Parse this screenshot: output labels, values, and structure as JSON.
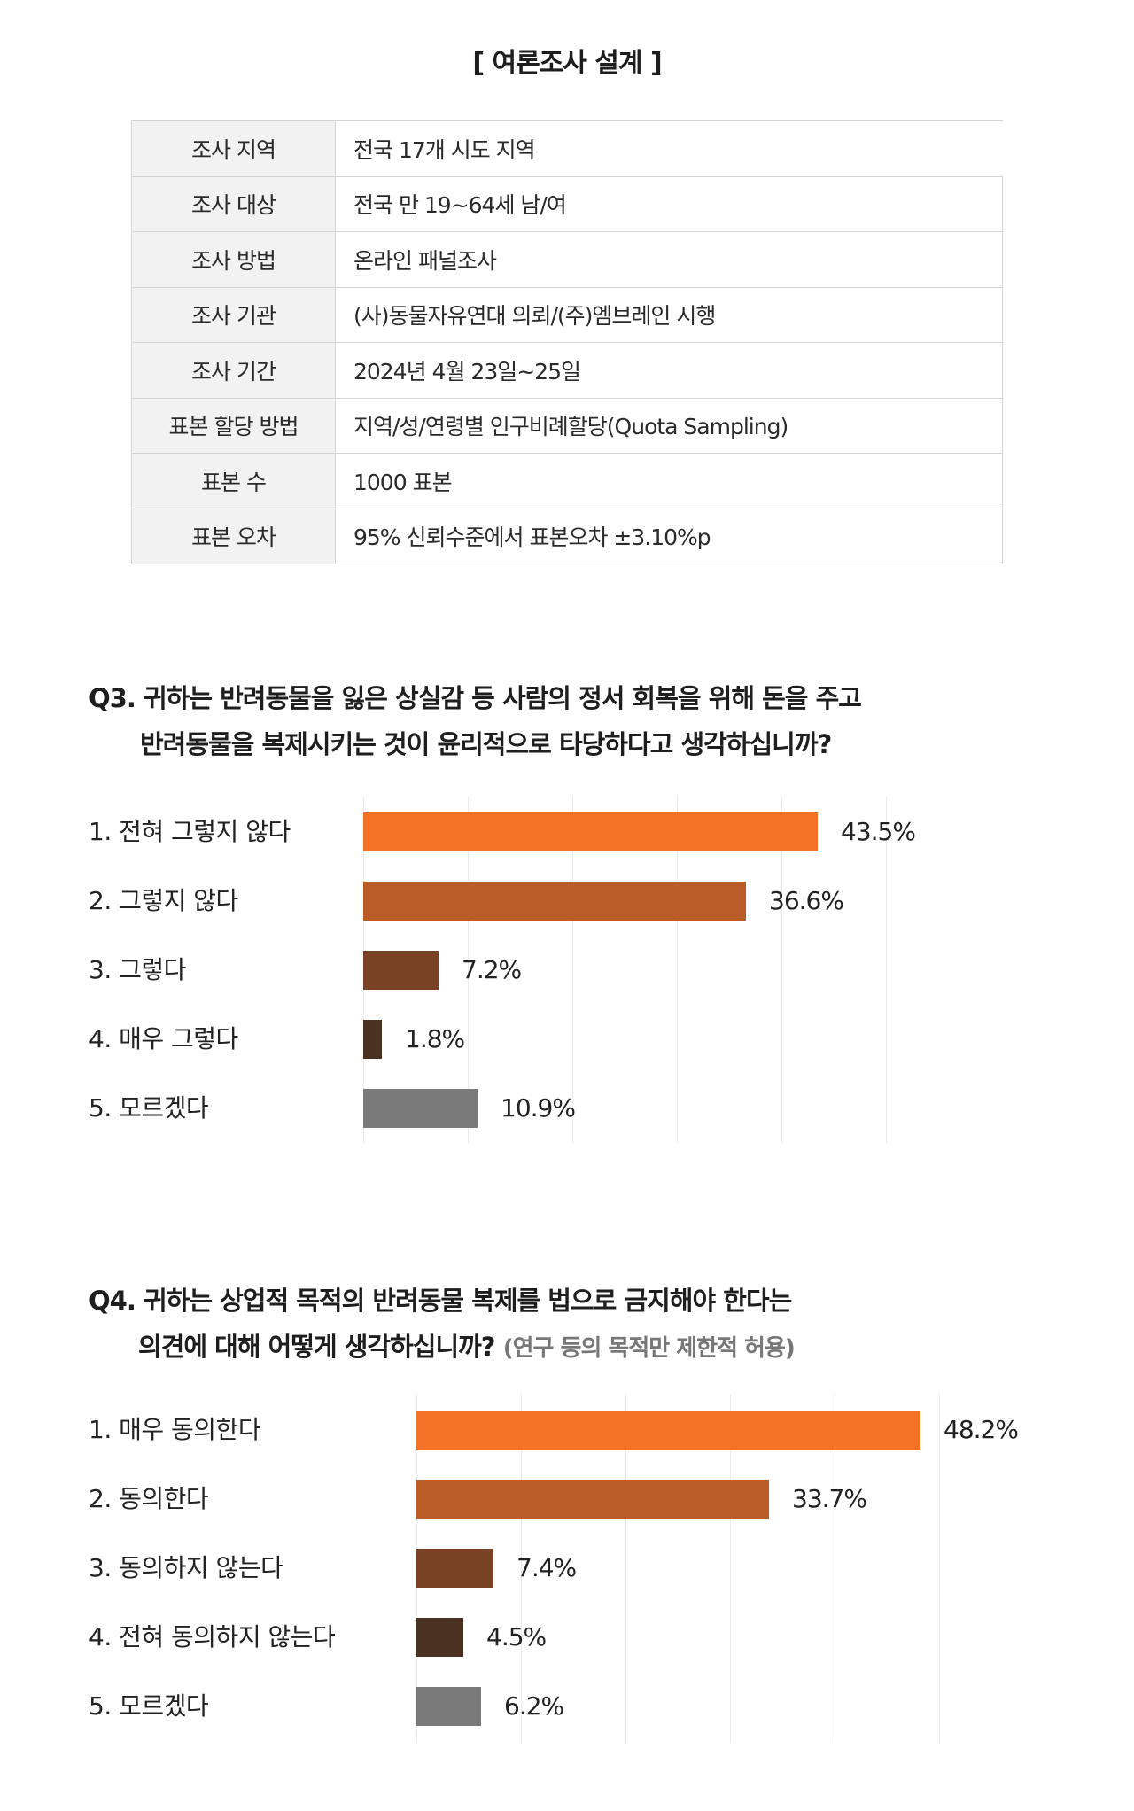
{
  "title": "[ 여론조사 설계 ]",
  "design_table": [
    {
      "key": "조사 지역",
      "value": "전국 17개 시도 지역"
    },
    {
      "key": "조사 대상",
      "value": "전국 만 19~64세 남/여"
    },
    {
      "key": "조사 방법",
      "value": "온라인 패널조사"
    },
    {
      "key": "조사 기관",
      "value": "(사)동물자유연대 의뢰/(주)엠브레인 시행"
    },
    {
      "key": "조사 기간",
      "value": "2024년 4월 23일~25일"
    },
    {
      "key": "표본 할당 방법",
      "value": "지역/성/연령별 인구비례할당(Quota Sampling)"
    },
    {
      "key": "표본 수",
      "value": "1000 표본"
    },
    {
      "key": "표본 오차",
      "value": "95% 신뢰수준에서 표본오차 ±3.10%p"
    }
  ],
  "q3": {
    "line1": "Q3. 귀하는 반려동물을 잃은 상실감 등 사람의 정서 회복을 위해 돈을 주고",
    "line2": "반려동물을 복제시키는 것이 윤리적으로 타당하다고 생각하십니까?"
  },
  "q4": {
    "line1": "Q4. 귀하는 상업적 목적의 반려동물 복제를 법으로 금지해야 한다는",
    "line2": "의견에 대해 어떻게 생각하십니까?",
    "note": "(연구 등의 목적만 제한적 허용)"
  },
  "colors": {
    "bar1": "#F37225",
    "bar2": "#BA5C27",
    "bar3": "#7A4224",
    "bar4": "#4A3222",
    "bar5": "#7A7A7A",
    "grid": "#EBEBEB"
  },
  "chart_data": [
    {
      "type": "bar",
      "orientation": "horizontal",
      "title": "Q3. 귀하는 반려동물을 잃은 상실감 등 사람의 정서 회복을 위해 돈을 주고 반려동물을 복제시키는 것이 윤리적으로 타당하다고 생각하십니까?",
      "categories": [
        "1. 전혀 그렇지 않다",
        "2. 그렇지 않다",
        "3. 그렇다",
        "4. 매우 그렇다",
        "5. 모르겠다"
      ],
      "values": [
        43.5,
        36.6,
        7.2,
        1.8,
        10.9
      ],
      "value_labels": [
        "43.5%",
        "36.6%",
        "7.2%",
        "1.8%",
        "10.9%"
      ],
      "xlabel": "",
      "ylabel": "",
      "xlim": [
        0,
        50
      ],
      "grid": true,
      "gridlines_at": [
        0,
        10,
        20,
        30,
        40,
        50
      ],
      "legend": "none"
    },
    {
      "type": "bar",
      "orientation": "horizontal",
      "title": "Q4. 귀하는 상업적 목적의 반려동물 복제를 법으로 금지해야 한다는 의견에 대해 어떻게 생각하십니까? (연구 등의 목적만 제한적 허용)",
      "categories": [
        "1. 매우 동의한다",
        "2. 동의한다",
        "3. 동의하지 않는다",
        "4. 전혀 동의하지 않는다",
        "5. 모르겠다"
      ],
      "values": [
        48.2,
        33.7,
        7.4,
        4.5,
        6.2
      ],
      "value_labels": [
        "48.2%",
        "33.7%",
        "7.4%",
        "4.5%",
        "6.2%"
      ],
      "xlabel": "",
      "ylabel": "",
      "xlim": [
        0,
        50
      ],
      "grid": true,
      "gridlines_at": [
        0,
        10,
        20,
        30,
        40,
        50
      ],
      "legend": "none"
    }
  ]
}
